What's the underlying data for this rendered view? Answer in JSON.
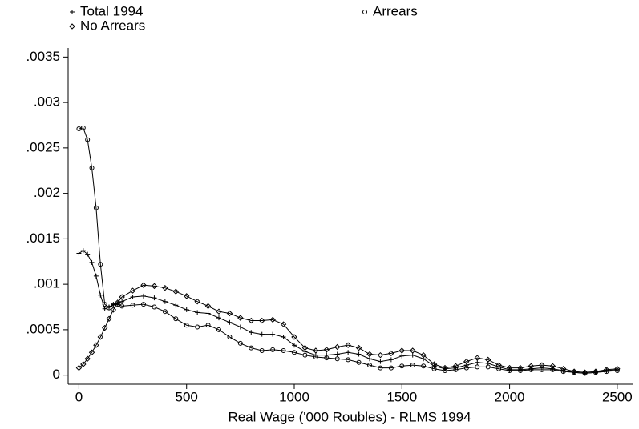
{
  "chart_data": {
    "type": "line",
    "x_label": "Real Wage ('000 Roubles) - RLMS 1994",
    "x": [
      0,
      20,
      40,
      60,
      80,
      100,
      120,
      140,
      160,
      180,
      200,
      250,
      300,
      350,
      400,
      450,
      500,
      550,
      600,
      650,
      700,
      750,
      800,
      850,
      900,
      950,
      1000,
      1050,
      1100,
      1150,
      1200,
      1250,
      1300,
      1350,
      1400,
      1450,
      1500,
      1550,
      1600,
      1650,
      1700,
      1750,
      1800,
      1850,
      1900,
      1950,
      2000,
      2050,
      2100,
      2150,
      2200,
      2250,
      2300,
      2350,
      2400,
      2450,
      2500
    ],
    "series": [
      {
        "name": "Total 1994",
        "color": "#000000",
        "marker": "plus",
        "values": [
          0.00134,
          0.00137,
          0.00133,
          0.00124,
          0.00109,
          0.00088,
          0.00073,
          0.00075,
          0.00078,
          0.00079,
          0.00081,
          0.00086,
          0.00087,
          0.00085,
          0.00081,
          0.00077,
          0.00072,
          0.00069,
          0.00068,
          0.00063,
          0.00058,
          0.00053,
          0.00047,
          0.00045,
          0.00045,
          0.00042,
          0.00033,
          0.00026,
          0.00022,
          0.00022,
          0.00023,
          0.00025,
          0.00023,
          0.00018,
          0.00015,
          0.00017,
          0.00021,
          0.00022,
          0.00018,
          0.0001,
          7e-05,
          8e-05,
          0.00011,
          0.00014,
          0.00013,
          9e-05,
          6e-05,
          6e-05,
          7e-05,
          8e-05,
          7e-05,
          5e-05,
          3e-05,
          2e-05,
          3e-05,
          5e-05,
          6e-05
        ]
      },
      {
        "name": "Arrears",
        "color": "#000000",
        "marker": "circle",
        "values": [
          0.00271,
          0.00272,
          0.00259,
          0.00228,
          0.00184,
          0.00122,
          0.00078,
          0.00074,
          0.00077,
          0.00078,
          0.00076,
          0.00077,
          0.00078,
          0.00075,
          0.0007,
          0.00062,
          0.00055,
          0.00053,
          0.00055,
          0.0005,
          0.00042,
          0.00035,
          0.0003,
          0.00027,
          0.00028,
          0.00027,
          0.00025,
          0.00022,
          0.0002,
          0.00019,
          0.00018,
          0.00017,
          0.00014,
          0.00011,
          8e-05,
          8e-05,
          0.0001,
          0.00011,
          0.0001,
          7e-05,
          5e-05,
          6e-05,
          8e-05,
          9e-05,
          9e-05,
          7e-05,
          5e-05,
          5e-05,
          6e-05,
          6e-05,
          6e-05,
          4e-05,
          3e-05,
          2e-05,
          3e-05,
          4e-05,
          5e-05
        ]
      },
      {
        "name": "No Arrears",
        "color": "#000000",
        "marker": "diamond",
        "values": [
          8e-05,
          0.00012,
          0.00018,
          0.00025,
          0.00033,
          0.00042,
          0.00052,
          0.00062,
          0.00072,
          0.0008,
          0.00086,
          0.00093,
          0.00099,
          0.00098,
          0.00096,
          0.00092,
          0.00087,
          0.00081,
          0.00076,
          0.0007,
          0.00068,
          0.00063,
          0.0006,
          0.0006,
          0.00061,
          0.00056,
          0.00042,
          0.0003,
          0.00027,
          0.00028,
          0.00031,
          0.00033,
          0.0003,
          0.00023,
          0.00022,
          0.00024,
          0.00027,
          0.00027,
          0.00022,
          0.00012,
          8e-05,
          0.0001,
          0.00015,
          0.00019,
          0.00017,
          0.00011,
          8e-05,
          8e-05,
          0.0001,
          0.00011,
          0.0001,
          7e-05,
          4e-05,
          3e-05,
          4e-05,
          6e-05,
          7e-05
        ]
      }
    ],
    "xlim": [
      -50,
      2575
    ],
    "xticks": [
      0,
      500,
      1000,
      1500,
      2000,
      2500
    ],
    "ylim": [
      -0.0001,
      0.0036
    ],
    "yticks": [
      0,
      {
        "value": 0.0005,
        "label": ".0005"
      },
      {
        "value": 0.001,
        "label": ".001"
      },
      {
        "value": 0.0015,
        "label": ".0015"
      },
      {
        "value": 0.002,
        "label": ".002"
      },
      {
        "value": 0.0025,
        "label": ".0025"
      },
      {
        "value": 0.003,
        "label": ".003"
      },
      {
        "value": 0.0035,
        "label": ".0035"
      }
    ],
    "grid": false,
    "legend": "top"
  }
}
